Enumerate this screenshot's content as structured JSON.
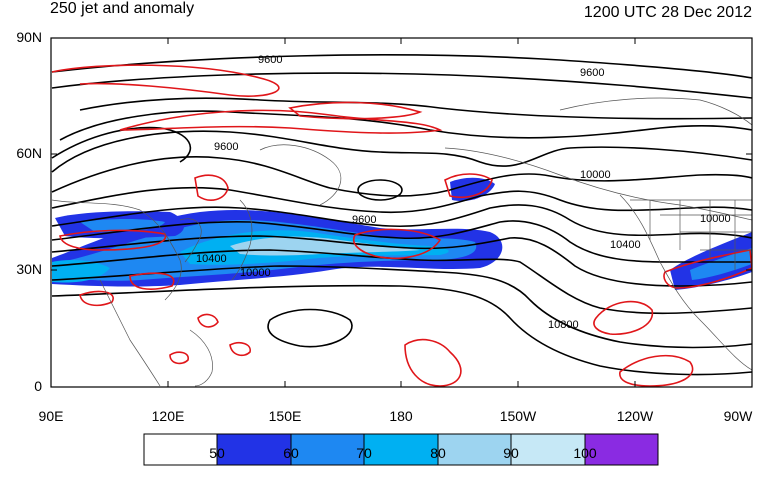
{
  "header": {
    "title": "250 jet and anomaly",
    "valid_time": "1200 UTC 28 Dec 2012"
  },
  "map": {
    "lat_labels": [
      "90N",
      "60N",
      "30N",
      "0"
    ],
    "lon_labels": [
      "90E",
      "120E",
      "150E",
      "180",
      "150W",
      "120W",
      "90W"
    ],
    "contour_labels": [
      "9600",
      "9600",
      "9600",
      "9600",
      "10000",
      "10000",
      "10000",
      "10400",
      "10400",
      "10800"
    ],
    "fill_label_colors": {
      "50": "#2233e6",
      "60": "#1e88f2",
      "70": "#00b0f2",
      "80": "#9dd4f0",
      "90": "#c6e8f6",
      "100": "#8a2be2"
    },
    "anomaly_color": "#e0161a"
  },
  "colorbar": {
    "labels": [
      "50",
      "60",
      "70",
      "80",
      "90",
      "100"
    ],
    "colors": [
      "#ffffff",
      "#2233e6",
      "#1e88f2",
      "#00b0f2",
      "#9dd4f0",
      "#c6e8f6",
      "#8a2be2"
    ]
  }
}
